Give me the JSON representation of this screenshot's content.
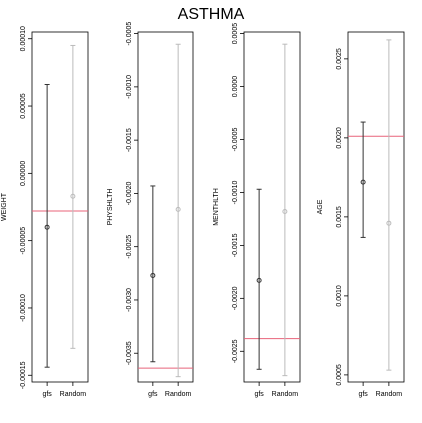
{
  "title": "ASTHMA",
  "colors": {
    "gfs": "#333333",
    "random": "#bbbbbb",
    "reference_line": "#e8637a",
    "frame": "#000000"
  },
  "chart_data": [
    {
      "type": "scatter",
      "ylabel": "WEIGHT",
      "categories": [
        "gfs",
        "Random"
      ],
      "ylim": [
        -0.000155,
        0.000105
      ],
      "yticks": [
        "0.00010",
        "0.00005",
        "0.00000",
        "-0.00005",
        "-0.00010",
        "-0.00015"
      ],
      "ytick_values": [
        0.0001,
        5e-05,
        0.0,
        -5e-05,
        -0.0001,
        -0.00015
      ],
      "reference_line": -2.8e-05,
      "series": [
        {
          "category": "gfs",
          "estimate": -4e-05,
          "lower": -0.000144,
          "upper": 6.6e-05
        },
        {
          "category": "Random",
          "estimate": -1.7e-05,
          "lower": -0.00013,
          "upper": 9.5e-05
        }
      ]
    },
    {
      "type": "scatter",
      "ylabel": "PHYSHLTH",
      "categories": [
        "gfs",
        "Random"
      ],
      "ylim": [
        -0.00377,
        -0.000485
      ],
      "yticks": [
        "-0.0005",
        "-0.0010",
        "-0.0015",
        "-0.0020",
        "-0.0025",
        "-0.0030",
        "-0.0035"
      ],
      "ytick_values": [
        -0.0005,
        -0.001,
        -0.0015,
        -0.002,
        -0.0025,
        -0.003,
        -0.0035
      ],
      "reference_line": -0.00364,
      "series": [
        {
          "category": "gfs",
          "estimate": -0.00277,
          "lower": -0.00358,
          "upper": -0.00193
        },
        {
          "category": "Random",
          "estimate": -0.00215,
          "lower": -0.00372,
          "upper": -0.0006
        }
      ]
    },
    {
      "type": "scatter",
      "ylabel": "MENTHLTH",
      "categories": [
        "gfs",
        "Random"
      ],
      "ylim": [
        -0.00279,
        0.000515
      ],
      "yticks": [
        "0.0005",
        "0.0000",
        "-0.0005",
        "-0.0010",
        "-0.0015",
        "-0.0020",
        "-0.0025"
      ],
      "ytick_values": [
        0.0005,
        0.0,
        -0.0005,
        -0.001,
        -0.0015,
        -0.002,
        -0.0025
      ],
      "reference_line": -0.00238,
      "series": [
        {
          "category": "gfs",
          "estimate": -0.00183,
          "lower": -0.00267,
          "upper": -0.00097
        },
        {
          "category": "Random",
          "estimate": -0.00118,
          "lower": -0.00273,
          "upper": 0.0004
        }
      ]
    },
    {
      "type": "scatter",
      "ylabel": "AGE",
      "categories": [
        "gfs",
        "Random"
      ],
      "ylim": [
        0.000455,
        0.00267
      ],
      "yticks": [
        "0.0025",
        "0.0020",
        "0.0015",
        "0.0010",
        "0.0005"
      ],
      "ytick_values": [
        0.0025,
        0.002,
        0.0015,
        0.001,
        0.0005
      ],
      "reference_line": 0.00201,
      "series": [
        {
          "category": "gfs",
          "estimate": 0.00172,
          "lower": 0.00137,
          "upper": 0.0021
        },
        {
          "category": "Random",
          "estimate": 0.00146,
          "lower": 0.00053,
          "upper": 0.00262
        }
      ]
    }
  ]
}
